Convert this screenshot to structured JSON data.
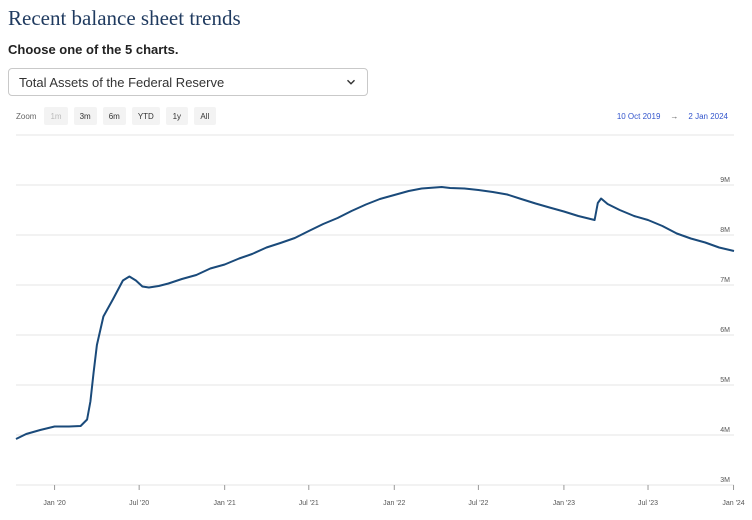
{
  "header": {
    "title": "Recent balance sheet trends",
    "subtitle": "Choose one of the 5 charts."
  },
  "selector": {
    "selected": "Total Assets of the Federal Reserve",
    "icon": "chevron-down-icon"
  },
  "zoom": {
    "label": "Zoom",
    "buttons": [
      "1m",
      "3m",
      "6m",
      "YTD",
      "1y",
      "All"
    ],
    "disabled": [
      "1m"
    ]
  },
  "range": {
    "from": "10 Oct 2019",
    "arrow": "→",
    "to": "2 Jan 2024"
  },
  "colors": {
    "line": "#1a4a7a",
    "title": "#1f3a5f",
    "range_text": "#3355cc"
  },
  "chart_data": {
    "type": "line",
    "title": "",
    "xlabel": "",
    "ylabel": "",
    "ylim": [
      3,
      9
    ],
    "xlim": [
      "2019-10-10",
      "2024-01-02"
    ],
    "grid": true,
    "y_ticks": [
      {
        "value": 3,
        "label": "3M"
      },
      {
        "value": 4,
        "label": "4M"
      },
      {
        "value": 5,
        "label": "5M"
      },
      {
        "value": 6,
        "label": "6M"
      },
      {
        "value": 7,
        "label": "7M"
      },
      {
        "value": 8,
        "label": "8M"
      },
      {
        "value": 9,
        "label": "9M"
      }
    ],
    "x_ticks": [
      {
        "date": "2020-01-01",
        "label": "Jan '20"
      },
      {
        "date": "2020-07-01",
        "label": "Jul '20"
      },
      {
        "date": "2021-01-01",
        "label": "Jan '21"
      },
      {
        "date": "2021-07-01",
        "label": "Jul '21"
      },
      {
        "date": "2022-01-01",
        "label": "Jan '22"
      },
      {
        "date": "2022-07-01",
        "label": "Jul '22"
      },
      {
        "date": "2023-01-01",
        "label": "Jan '23"
      },
      {
        "date": "2023-07-01",
        "label": "Jul '23"
      },
      {
        "date": "2024-01-01",
        "label": "Jan '24"
      }
    ],
    "series": [
      {
        "values": [
          [
            "2019-10-10",
            3.92
          ],
          [
            "2019-11-01",
            4.02
          ],
          [
            "2019-12-01",
            4.1
          ],
          [
            "2020-01-01",
            4.17
          ],
          [
            "2020-02-01",
            4.17
          ],
          [
            "2020-02-26",
            4.18
          ],
          [
            "2020-03-11",
            4.31
          ],
          [
            "2020-03-18",
            4.67
          ],
          [
            "2020-03-25",
            5.25
          ],
          [
            "2020-04-01",
            5.8
          ],
          [
            "2020-04-15",
            6.37
          ],
          [
            "2020-05-06",
            6.72
          ],
          [
            "2020-05-27",
            7.09
          ],
          [
            "2020-06-10",
            7.17
          ],
          [
            "2020-06-24",
            7.09
          ],
          [
            "2020-07-08",
            6.97
          ],
          [
            "2020-07-22",
            6.95
          ],
          [
            "2020-08-12",
            6.98
          ],
          [
            "2020-09-02",
            7.03
          ],
          [
            "2020-10-01",
            7.12
          ],
          [
            "2020-11-01",
            7.2
          ],
          [
            "2020-12-01",
            7.33
          ],
          [
            "2021-01-01",
            7.41
          ],
          [
            "2021-02-01",
            7.53
          ],
          [
            "2021-03-01",
            7.62
          ],
          [
            "2021-04-01",
            7.75
          ],
          [
            "2021-05-01",
            7.84
          ],
          [
            "2021-06-01",
            7.94
          ],
          [
            "2021-07-01",
            8.08
          ],
          [
            "2021-08-01",
            8.22
          ],
          [
            "2021-09-01",
            8.34
          ],
          [
            "2021-10-01",
            8.48
          ],
          [
            "2021-11-01",
            8.61
          ],
          [
            "2021-12-01",
            8.72
          ],
          [
            "2022-01-01",
            8.8
          ],
          [
            "2022-02-01",
            8.88
          ],
          [
            "2022-03-01",
            8.93
          ],
          [
            "2022-04-13",
            8.96
          ],
          [
            "2022-05-01",
            8.94
          ],
          [
            "2022-06-01",
            8.93
          ],
          [
            "2022-07-01",
            8.9
          ],
          [
            "2022-08-01",
            8.86
          ],
          [
            "2022-09-01",
            8.81
          ],
          [
            "2022-10-01",
            8.72
          ],
          [
            "2022-11-01",
            8.63
          ],
          [
            "2022-12-01",
            8.55
          ],
          [
            "2023-01-01",
            8.47
          ],
          [
            "2023-02-01",
            8.38
          ],
          [
            "2023-03-08",
            8.3
          ],
          [
            "2023-03-15",
            8.64
          ],
          [
            "2023-03-22",
            8.73
          ],
          [
            "2023-04-05",
            8.62
          ],
          [
            "2023-05-01",
            8.5
          ],
          [
            "2023-06-01",
            8.38
          ],
          [
            "2023-07-01",
            8.3
          ],
          [
            "2023-08-01",
            8.18
          ],
          [
            "2023-09-01",
            8.03
          ],
          [
            "2023-10-01",
            7.93
          ],
          [
            "2023-11-01",
            7.85
          ],
          [
            "2023-12-01",
            7.75
          ],
          [
            "2024-01-02",
            7.68
          ]
        ]
      }
    ]
  }
}
